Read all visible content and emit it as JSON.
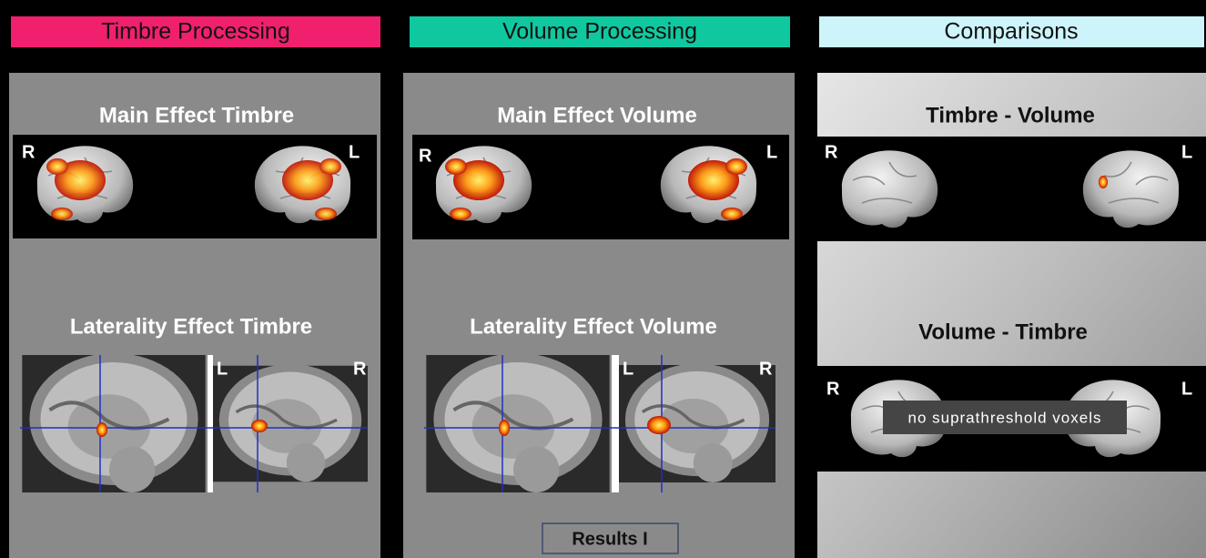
{
  "columns": [
    {
      "header": "Timbre Processing",
      "sections": [
        {
          "title": "Main Effect  Timbre",
          "left_label": "R",
          "right_label": "L"
        },
        {
          "title": "Laterality Effect Timbre",
          "left_label": "L",
          "right_label": "R"
        }
      ]
    },
    {
      "header": "Volume Processing",
      "sections": [
        {
          "title": "Main Effect  Volume",
          "left_label": "R",
          "right_label": "L"
        },
        {
          "title": "Laterality Effect  Volume",
          "left_label": "L",
          "right_label": "R"
        }
      ],
      "button": "Results I"
    },
    {
      "header": "Comparisons",
      "sections": [
        {
          "title": "Timbre - Volume",
          "left_label": "R",
          "right_label": "L"
        },
        {
          "title": "Volume - Timbre",
          "left_label": "R",
          "right_label": "L",
          "note": "no suprathreshold voxels"
        }
      ]
    }
  ]
}
